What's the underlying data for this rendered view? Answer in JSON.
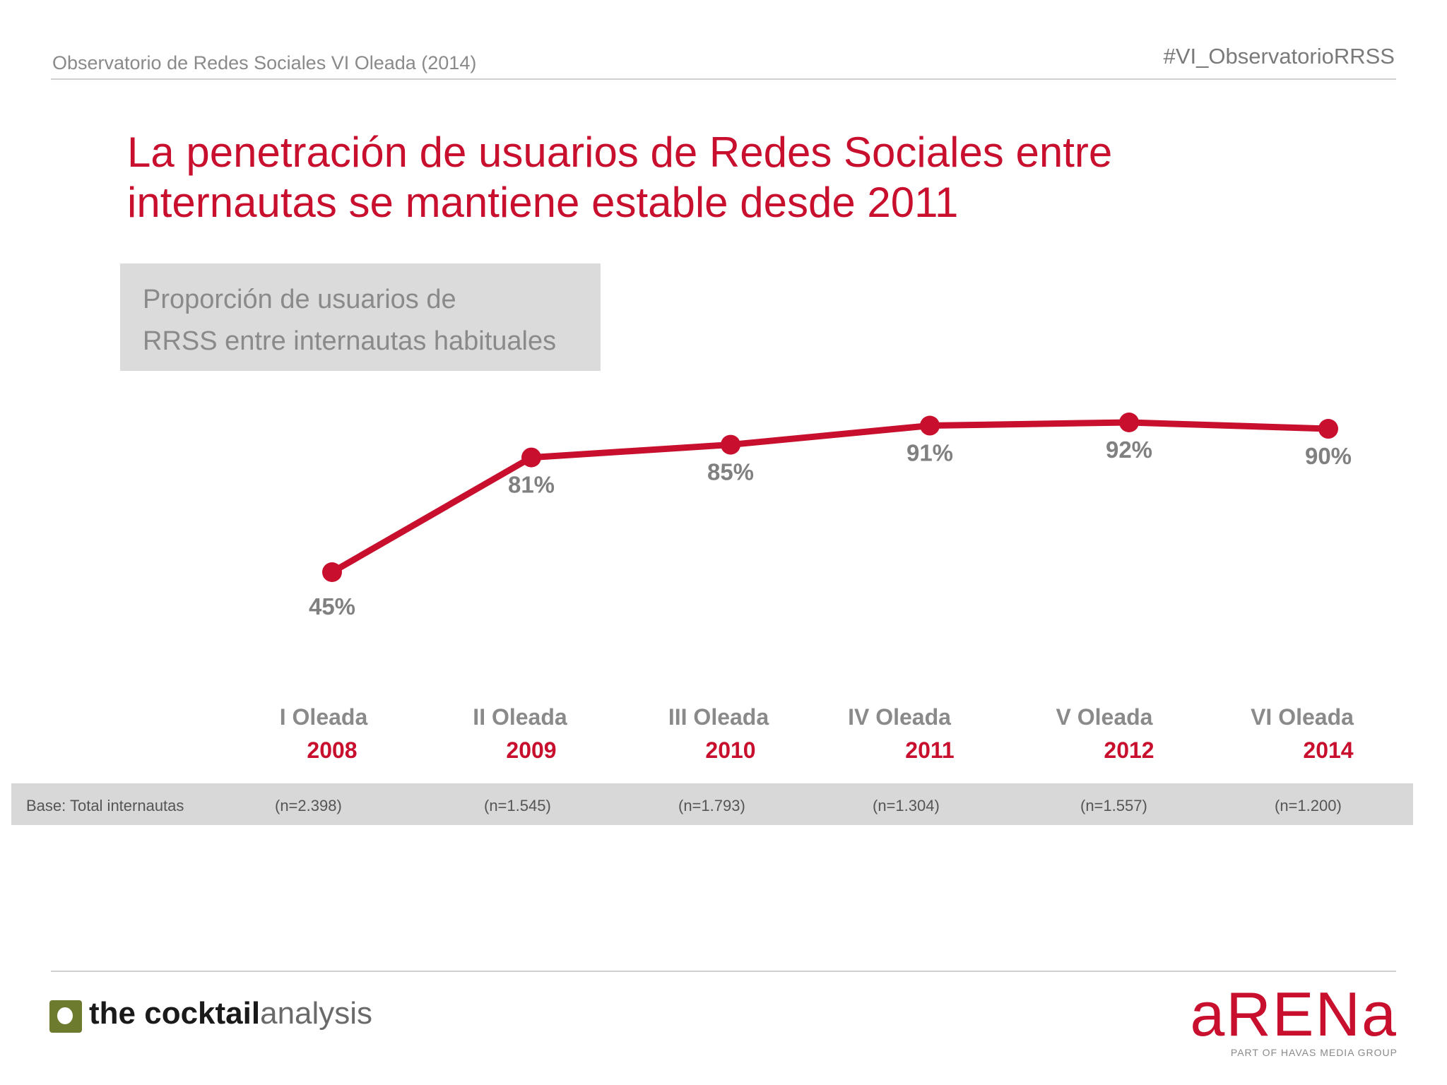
{
  "header": {
    "left": "Observatorio de Redes Sociales VI Oleada (2014)",
    "right": "#VI_ObservatorioRRSS"
  },
  "title": "La penetración de usuarios de Redes Sociales entre internautas se mantiene estable desde 2011",
  "subtitle_line1": "Proporción de usuarios de",
  "subtitle_line2": "RRSS entre internautas habituales",
  "colors": {
    "accent": "#c8102e",
    "label_gray": "#808080",
    "band": "#d9d8d9"
  },
  "chart_data": {
    "type": "line",
    "title": "Proporción de usuarios de RRSS entre internautas habituales",
    "categories": [
      "I Oleada",
      "II Oleada",
      "III Oleada",
      "IV Oleada",
      "V Oleada",
      "VI Oleada"
    ],
    "years": [
      "2008",
      "2009",
      "2010",
      "2011",
      "2012",
      "2014"
    ],
    "values": [
      45,
      81,
      85,
      91,
      92,
      90
    ],
    "value_labels": [
      "45%",
      "81%",
      "85%",
      "91%",
      "92%",
      "90%"
    ],
    "unit": "%",
    "ylim": [
      0,
      100
    ],
    "grid": false,
    "legend": "none"
  },
  "base": {
    "label": "Base: Total internautas",
    "values": [
      "(n=2.398)",
      "(n=1.545)",
      "(n=1.793)",
      "(n=1.304)",
      "(n=1.557)",
      "(n=1.200)"
    ]
  },
  "logos": {
    "left_strong": "the cocktail",
    "left_light": "analysis",
    "right_word": "aRENa",
    "right_tag": "PART OF HAVAS MEDIA GROUP"
  }
}
